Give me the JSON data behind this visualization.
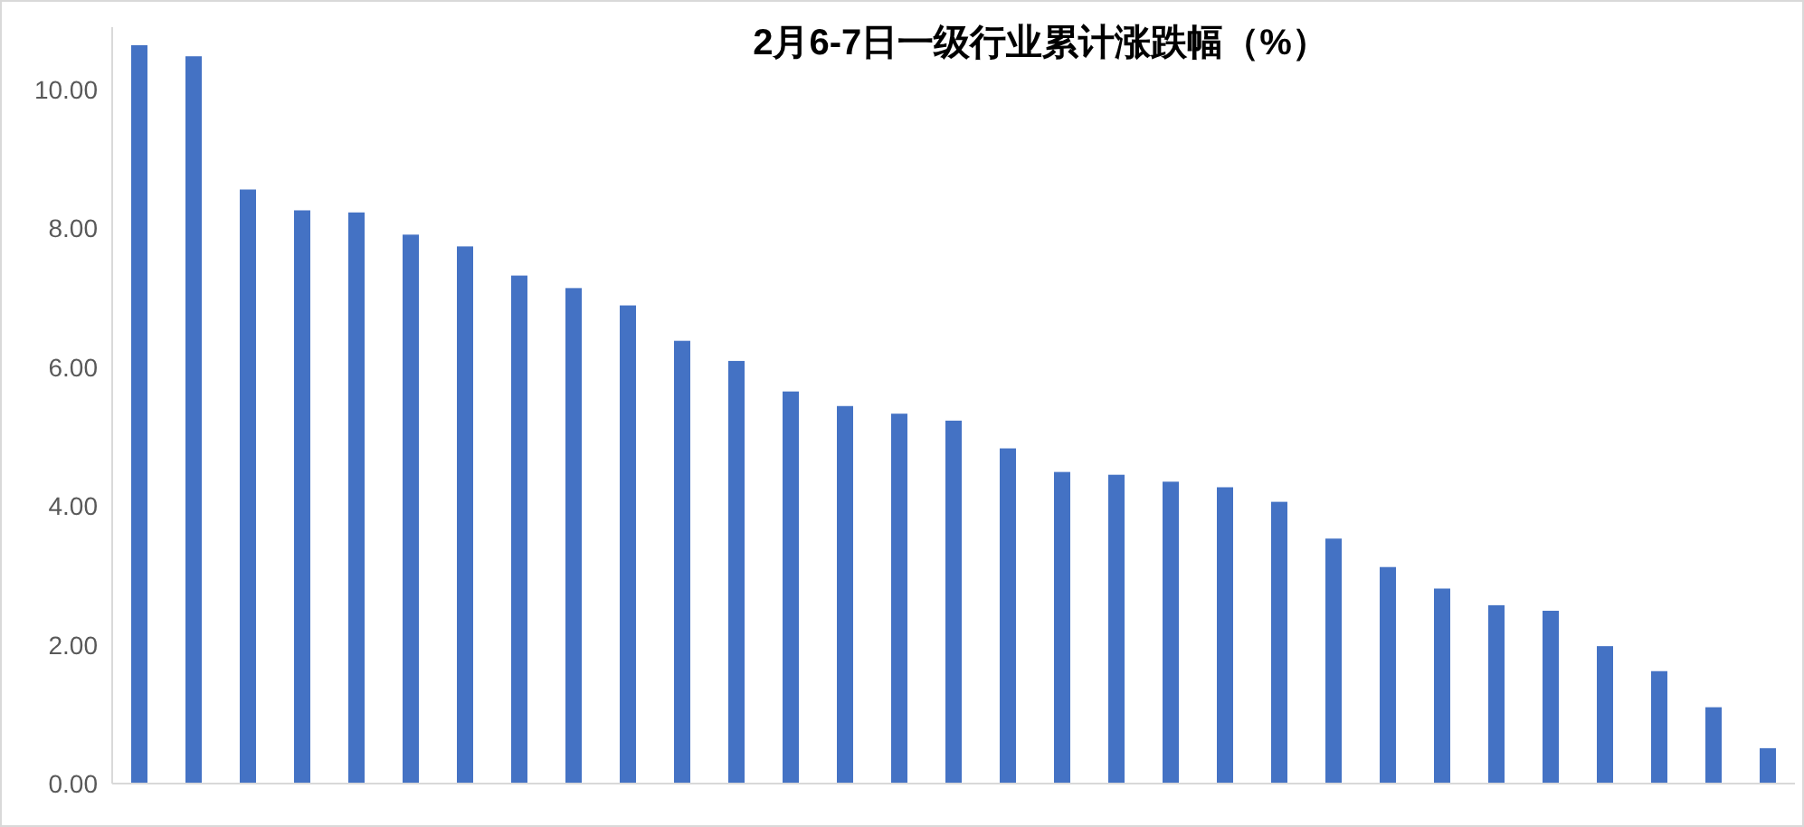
{
  "chart_data": {
    "type": "bar",
    "title": "2月6-7日一级行业累计涨跌幅（%）",
    "categories": [
      null,
      null,
      null,
      null,
      null,
      null,
      null,
      null,
      null,
      null,
      null,
      null,
      null,
      null,
      null,
      null,
      null,
      null,
      null,
      null,
      null,
      null,
      null,
      null,
      null,
      null,
      null,
      null,
      null,
      null,
      null
    ],
    "values": [
      10.64,
      10.48,
      8.56,
      8.26,
      8.23,
      7.91,
      7.74,
      7.32,
      7.14,
      6.89,
      6.38,
      6.09,
      5.65,
      5.44,
      5.33,
      5.23,
      4.83,
      4.49,
      4.45,
      4.35,
      4.27,
      4.06,
      3.53,
      3.12,
      2.81,
      2.57,
      2.49,
      1.98,
      1.62,
      1.1,
      0.51
    ],
    "color": "#4472c4",
    "yticks": [
      {
        "value": 0,
        "label": "0.00"
      },
      {
        "value": 2,
        "label": "2.00"
      },
      {
        "value": 4,
        "label": "4.00"
      },
      {
        "value": 6,
        "label": "6.00"
      },
      {
        "value": 8,
        "label": "8.00"
      },
      {
        "value": 10,
        "label": "10.00"
      }
    ],
    "ylim": [
      0,
      10.9
    ],
    "grid": false
  }
}
